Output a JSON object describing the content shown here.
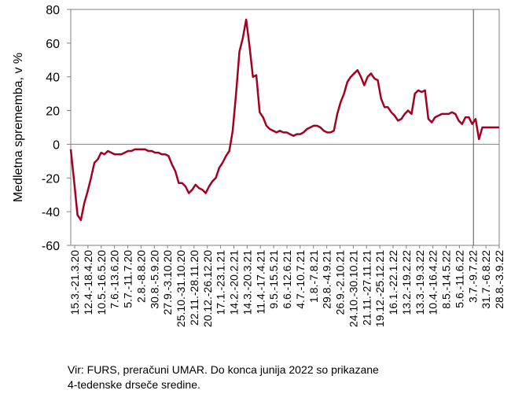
{
  "chart_data": {
    "type": "line",
    "ylabel": "Medletna sprememba, v %",
    "ylim": [
      -60,
      80
    ],
    "yticks": [
      80,
      60,
      40,
      20,
      0,
      -20,
      -40,
      -60
    ],
    "xtick_labels": [
      "15.3.-21.3.20",
      "12.4.-18.4.20",
      "10.5.-16.5.20",
      "7.6.-13.6.20",
      "5.7.-11.7.20",
      "2.8.-8.8.20",
      "30.8.-5.9.20",
      "27.9.-3.10.20",
      "25.10.-31.10.20",
      "22.11.-28.11.20",
      "20.12.-26.12.20",
      "17.1.-23.1.21",
      "14.2.-20.2.21",
      "14.3.-20.3.21",
      "11.4.-17.4.21",
      "9.5.-15.5.21",
      "6.6.-12.6.21",
      "4.7.-10.7.21",
      "1.8.-7.8.21",
      "29.8.-4.9.21",
      "26.9.-2.10.21",
      "24.10.-30.10.21",
      "21.11.-27.11.21",
      "19.12.-25.12.21",
      "16.1.-22.1.22",
      "13.2.-19.2.22",
      "13.3.-19.3.22",
      "10.4.-16.4.22",
      "8.5.-14.5.22",
      "5.6.-11.6.22",
      "3.7.-9.7.22",
      "31.7.-6.8.22",
      "28.8.-3.9.22"
    ],
    "x_weeks": 128,
    "vline_after_label": "5.6.-11.6.22",
    "series": [
      {
        "color": "#a50021",
        "values": [
          -3,
          -22,
          -42,
          -45,
          -35,
          -28,
          -20,
          -11,
          -9,
          -5,
          -6,
          -4,
          -5,
          -6,
          -6,
          -6,
          -5,
          -4,
          -4,
          -3,
          -3,
          -3,
          -3,
          -4,
          -4,
          -5,
          -5,
          -6,
          -6,
          -7,
          -12,
          -16,
          -23,
          -23,
          -25,
          -29,
          -27,
          -24,
          -26,
          -27,
          -29,
          -25,
          -22,
          -20,
          -14,
          -11,
          -7,
          -4,
          8,
          30,
          55,
          63,
          74,
          58,
          40,
          41,
          19,
          16,
          11,
          9,
          8,
          7,
          8,
          7,
          7,
          6,
          5,
          6,
          6,
          7,
          9,
          10,
          11,
          11,
          10,
          8,
          7,
          7,
          8,
          18,
          25,
          30,
          37,
          40,
          42,
          44,
          40,
          35,
          40,
          42,
          39,
          38,
          27,
          22,
          22,
          19,
          17,
          14,
          15,
          18,
          20,
          18,
          30,
          32,
          31,
          32,
          15,
          13,
          16,
          17,
          18,
          18,
          18,
          19,
          18,
          14,
          12,
          16,
          16,
          12,
          15,
          3,
          10,
          10,
          10,
          10,
          10,
          10
        ]
      }
    ]
  },
  "note_line1": "Vir: FURS, preračuni UMAR. Do konca junija 2022 so prikazane",
  "note_line2": "4-tedenske drseče sredine."
}
